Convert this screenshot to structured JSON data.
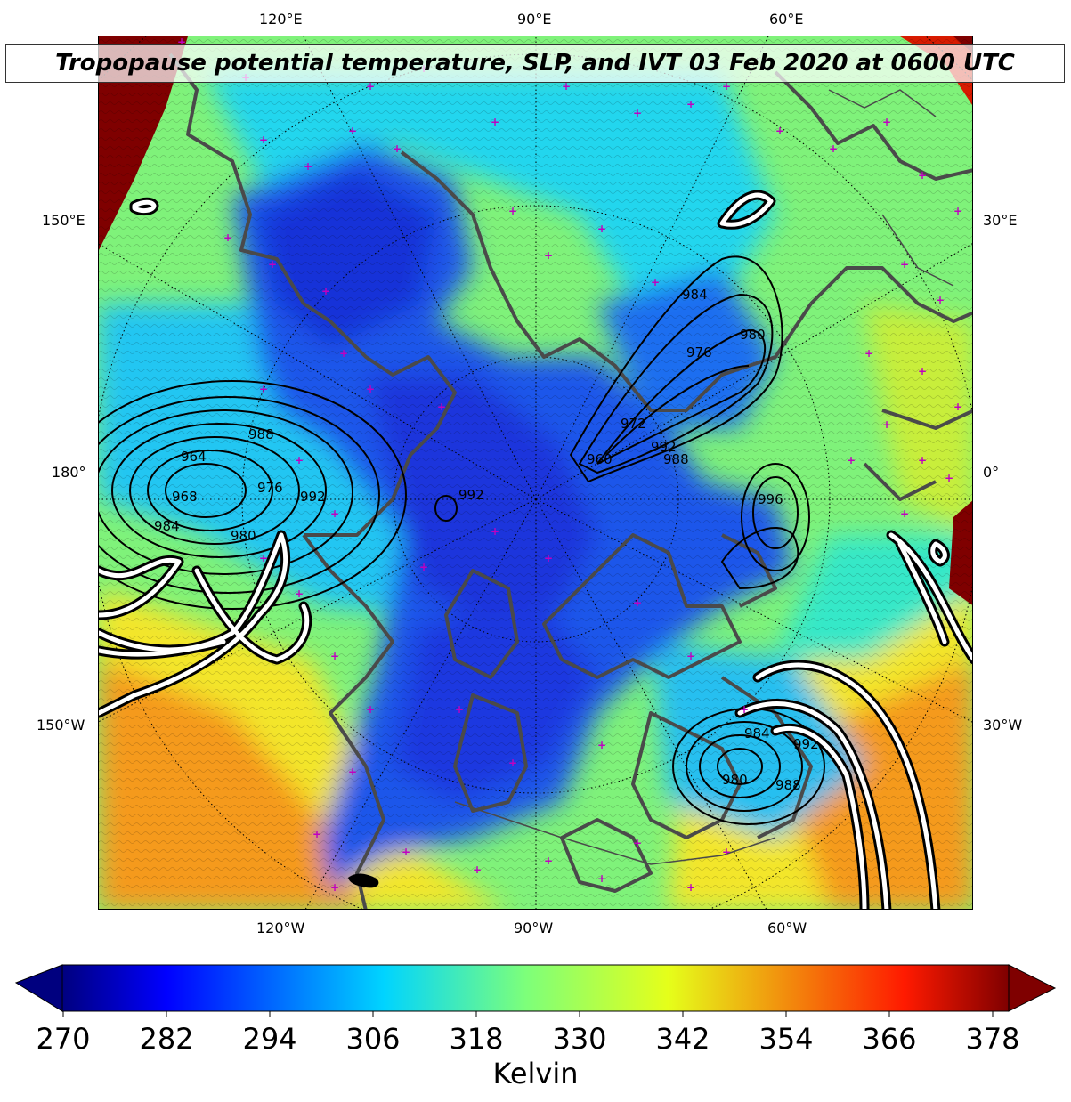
{
  "title": "Tropopause potential temperature, SLP, and IVT 03 Feb 2020 at 0600 UTC",
  "longitude_labels": {
    "top": [
      "120°E",
      "90°E",
      "60°E"
    ],
    "bottom": [
      "120°W",
      "90°W",
      "60°W"
    ],
    "left": [
      "150°E",
      "180°",
      "150°W"
    ],
    "right": [
      "30°E",
      "0°",
      "30°W"
    ]
  },
  "slp_contour_labels": [
    "984",
    "980",
    "976",
    "988",
    "992",
    "960",
    "988",
    "964",
    "968",
    "972",
    "976",
    "984",
    "980",
    "992",
    "992",
    "996",
    "984",
    "980",
    "988",
    "992"
  ],
  "colorbar": {
    "label": "Kelvin",
    "min": 270,
    "max": 378,
    "extend": "both",
    "ticks": [
      "270",
      "282",
      "294",
      "306",
      "318",
      "330",
      "342",
      "354",
      "366",
      "378"
    ],
    "colormap": "jet"
  },
  "colors": {
    "deep_blue": "#1f2bd6",
    "cyan": "#1fd0f0",
    "green": "#7ff27a",
    "yellow": "#f3e62a",
    "orange": "#f59a1a",
    "dark_red": "#7f0000",
    "coastline": "#4a4a4a",
    "station_marker": "#c000c0",
    "ivt_contour": "#ffffff"
  }
}
